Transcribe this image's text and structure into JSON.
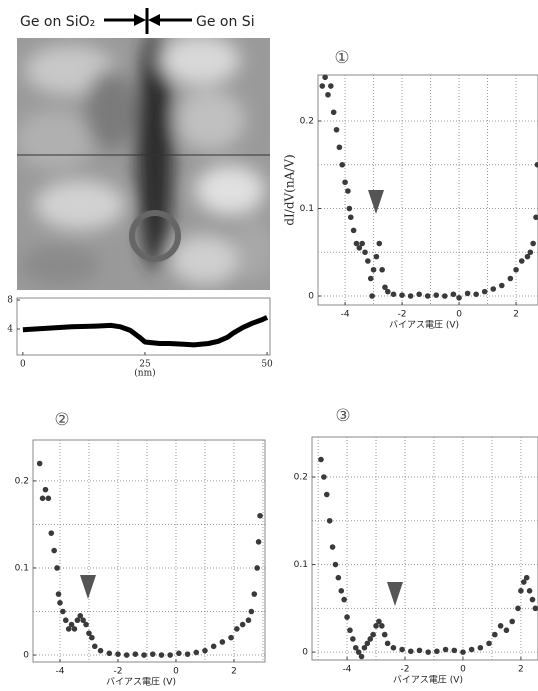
{
  "header": {
    "left": "Ge on SiO₂",
    "right": "Ge on Si"
  },
  "chart_data": [
    {
      "type": "line",
      "x": [
        0,
        5,
        10,
        15,
        18,
        20,
        22,
        24,
        25,
        28,
        30,
        33,
        35,
        38,
        40,
        42,
        43,
        45,
        47,
        49,
        50
      ],
      "values": [
        3.9,
        4.1,
        4.3,
        4.4,
        4.5,
        4.3,
        3.8,
        2.8,
        2.2,
        2.0,
        2.0,
        1.9,
        1.8,
        2.0,
        2.3,
        2.9,
        3.4,
        4.2,
        4.8,
        5.3,
        5.6
      ],
      "color": "#000000",
      "xlabel": "(nm)",
      "xlim": [
        -1.2,
        50.6
      ],
      "ylim": [
        0.41,
        8.28
      ],
      "xticks": [
        0,
        25,
        50
      ],
      "yticks": [
        4,
        8
      ]
    },
    {
      "type": "scatter",
      "panel": "①",
      "ylabel": "dI/dV(nA/V)",
      "xlabel": "バイアス電圧 (V)",
      "color": "#3a3a3a",
      "grid": true,
      "x": [
        -4.8,
        -4.7,
        -4.6,
        -4.5,
        -4.4,
        -4.3,
        -4.2,
        -4.1,
        -4.0,
        -3.9,
        -3.85,
        -3.8,
        -3.7,
        -3.6,
        -3.5,
        -3.4,
        -3.3,
        -3.2,
        -3.1,
        -3.05,
        -3.0,
        -2.9,
        -2.8,
        -2.7,
        -2.6,
        -2.5,
        -2.3,
        -2.0,
        -1.7,
        -1.4,
        -1.1,
        -0.8,
        -0.5,
        -0.2,
        0,
        0.3,
        0.6,
        0.9,
        1.2,
        1.5,
        1.8,
        2.0,
        2.2,
        2.4,
        2.5,
        2.6,
        2.7,
        2.75
      ],
      "values": [
        0.24,
        0.25,
        0.23,
        0.24,
        0.21,
        0.19,
        0.17,
        0.15,
        0.13,
        0.12,
        0.1,
        0.09,
        0.075,
        0.06,
        0.055,
        0.06,
        0.05,
        0.04,
        0.02,
        0,
        0.03,
        0.045,
        0.06,
        0.03,
        0.01,
        0.005,
        0.002,
        0.001,
        0,
        0.002,
        0,
        0.001,
        0,
        0.002,
        -0.002,
        0.003,
        0.002,
        0.005,
        0.008,
        0.012,
        0.02,
        0.03,
        0.04,
        0.045,
        0.05,
        0.06,
        0.09,
        0.15
      ],
      "xlim": [
        -4.95,
        2.77
      ],
      "ylim": [
        -0.0103,
        0.2526
      ],
      "xticks": [
        -4,
        -2,
        0,
        2
      ],
      "yticks": [
        0,
        0.1,
        0.2
      ],
      "xgrid": [
        -4,
        -3,
        -2,
        -1,
        0,
        1,
        2
      ],
      "ygrid": [
        0,
        0.05,
        0.1,
        0.15,
        0.2
      ]
    },
    {
      "type": "scatter",
      "panel": "②",
      "xlabel": "バイアス電圧 (V)",
      "color": "#3a3a3a",
      "grid": true,
      "x": [
        -4.7,
        -4.6,
        -4.5,
        -4.4,
        -4.3,
        -4.2,
        -4.1,
        -4.05,
        -4.0,
        -3.9,
        -3.8,
        -3.7,
        -3.6,
        -3.5,
        -3.4,
        -3.3,
        -3.2,
        -3.1,
        -3.0,
        -2.9,
        -2.8,
        -2.6,
        -2.3,
        -2.0,
        -1.7,
        -1.4,
        -1.1,
        -0.8,
        -0.5,
        -0.2,
        0.1,
        0.4,
        0.7,
        1.0,
        1.3,
        1.6,
        1.9,
        2.1,
        2.3,
        2.5,
        2.6,
        2.7,
        2.8,
        2.85,
        2.9
      ],
      "values": [
        0.22,
        0.18,
        0.19,
        0.18,
        0.14,
        0.12,
        0.1,
        0.07,
        0.06,
        0.05,
        0.04,
        0.03,
        0.035,
        0.03,
        0.04,
        0.045,
        0.04,
        0.035,
        0.025,
        0.02,
        0.01,
        0.005,
        0.002,
        0.001,
        0,
        0.001,
        0,
        0.001,
        0,
        0,
        0.002,
        0.001,
        0.003,
        0.005,
        0.01,
        0.015,
        0.02,
        0.03,
        0.035,
        0.04,
        0.05,
        0.07,
        0.1,
        0.13,
        0.16
      ],
      "xlim": [
        -4.93,
        3.07
      ],
      "ylim": [
        -0.008,
        0.247
      ],
      "xticks": [
        -4,
        -2,
        0,
        2
      ],
      "yticks": [
        0,
        0.1,
        0.2
      ],
      "xgrid": [
        -4,
        -3,
        -2,
        -1,
        0,
        1,
        2,
        3
      ],
      "ygrid": [
        0,
        0.05,
        0.1,
        0.15,
        0.2
      ]
    },
    {
      "type": "scatter",
      "panel": "③",
      "xlabel": "バイアス電圧 (V)",
      "color": "#3a3a3a",
      "grid": true,
      "x": [
        -4.9,
        -4.8,
        -4.7,
        -4.6,
        -4.5,
        -4.4,
        -4.3,
        -4.2,
        -4.1,
        -4.0,
        -3.9,
        -3.8,
        -3.7,
        -3.6,
        -3.5,
        -3.4,
        -3.3,
        -3.2,
        -3.1,
        -3.0,
        -2.9,
        -2.8,
        -2.7,
        -2.6,
        -2.4,
        -2.1,
        -1.8,
        -1.5,
        -1.2,
        -0.9,
        -0.6,
        -0.3,
        0,
        0.3,
        0.6,
        0.9,
        1.1,
        1.3,
        1.5,
        1.7,
        1.9,
        2.0,
        2.1,
        2.2,
        2.3,
        2.4,
        2.5
      ],
      "values": [
        0.22,
        0.2,
        0.18,
        0.15,
        0.12,
        0.1,
        0.085,
        0.07,
        0.06,
        0.04,
        0.025,
        0.015,
        0.005,
        0,
        -0.005,
        0.005,
        0.01,
        0.015,
        0.02,
        0.03,
        0.035,
        0.03,
        0.02,
        0.01,
        0.005,
        0.003,
        0.001,
        0.002,
        0,
        0.001,
        0.003,
        0.002,
        0,
        0.003,
        0.005,
        0.01,
        0.02,
        0.03,
        0.025,
        0.035,
        0.05,
        0.07,
        0.08,
        0.085,
        0.07,
        0.06,
        0.05
      ],
      "xlim": [
        -5.21,
        2.59
      ],
      "ylim": [
        -0.009,
        0.2457
      ],
      "xticks": [
        -4,
        -2,
        0,
        2
      ],
      "yticks": [
        0,
        0.1,
        0.2
      ],
      "xgrid": [
        -5,
        -4,
        -3,
        -2,
        -1,
        0,
        1,
        2
      ],
      "ygrid": [
        0,
        0.05,
        0.1,
        0.15,
        0.2
      ]
    }
  ]
}
